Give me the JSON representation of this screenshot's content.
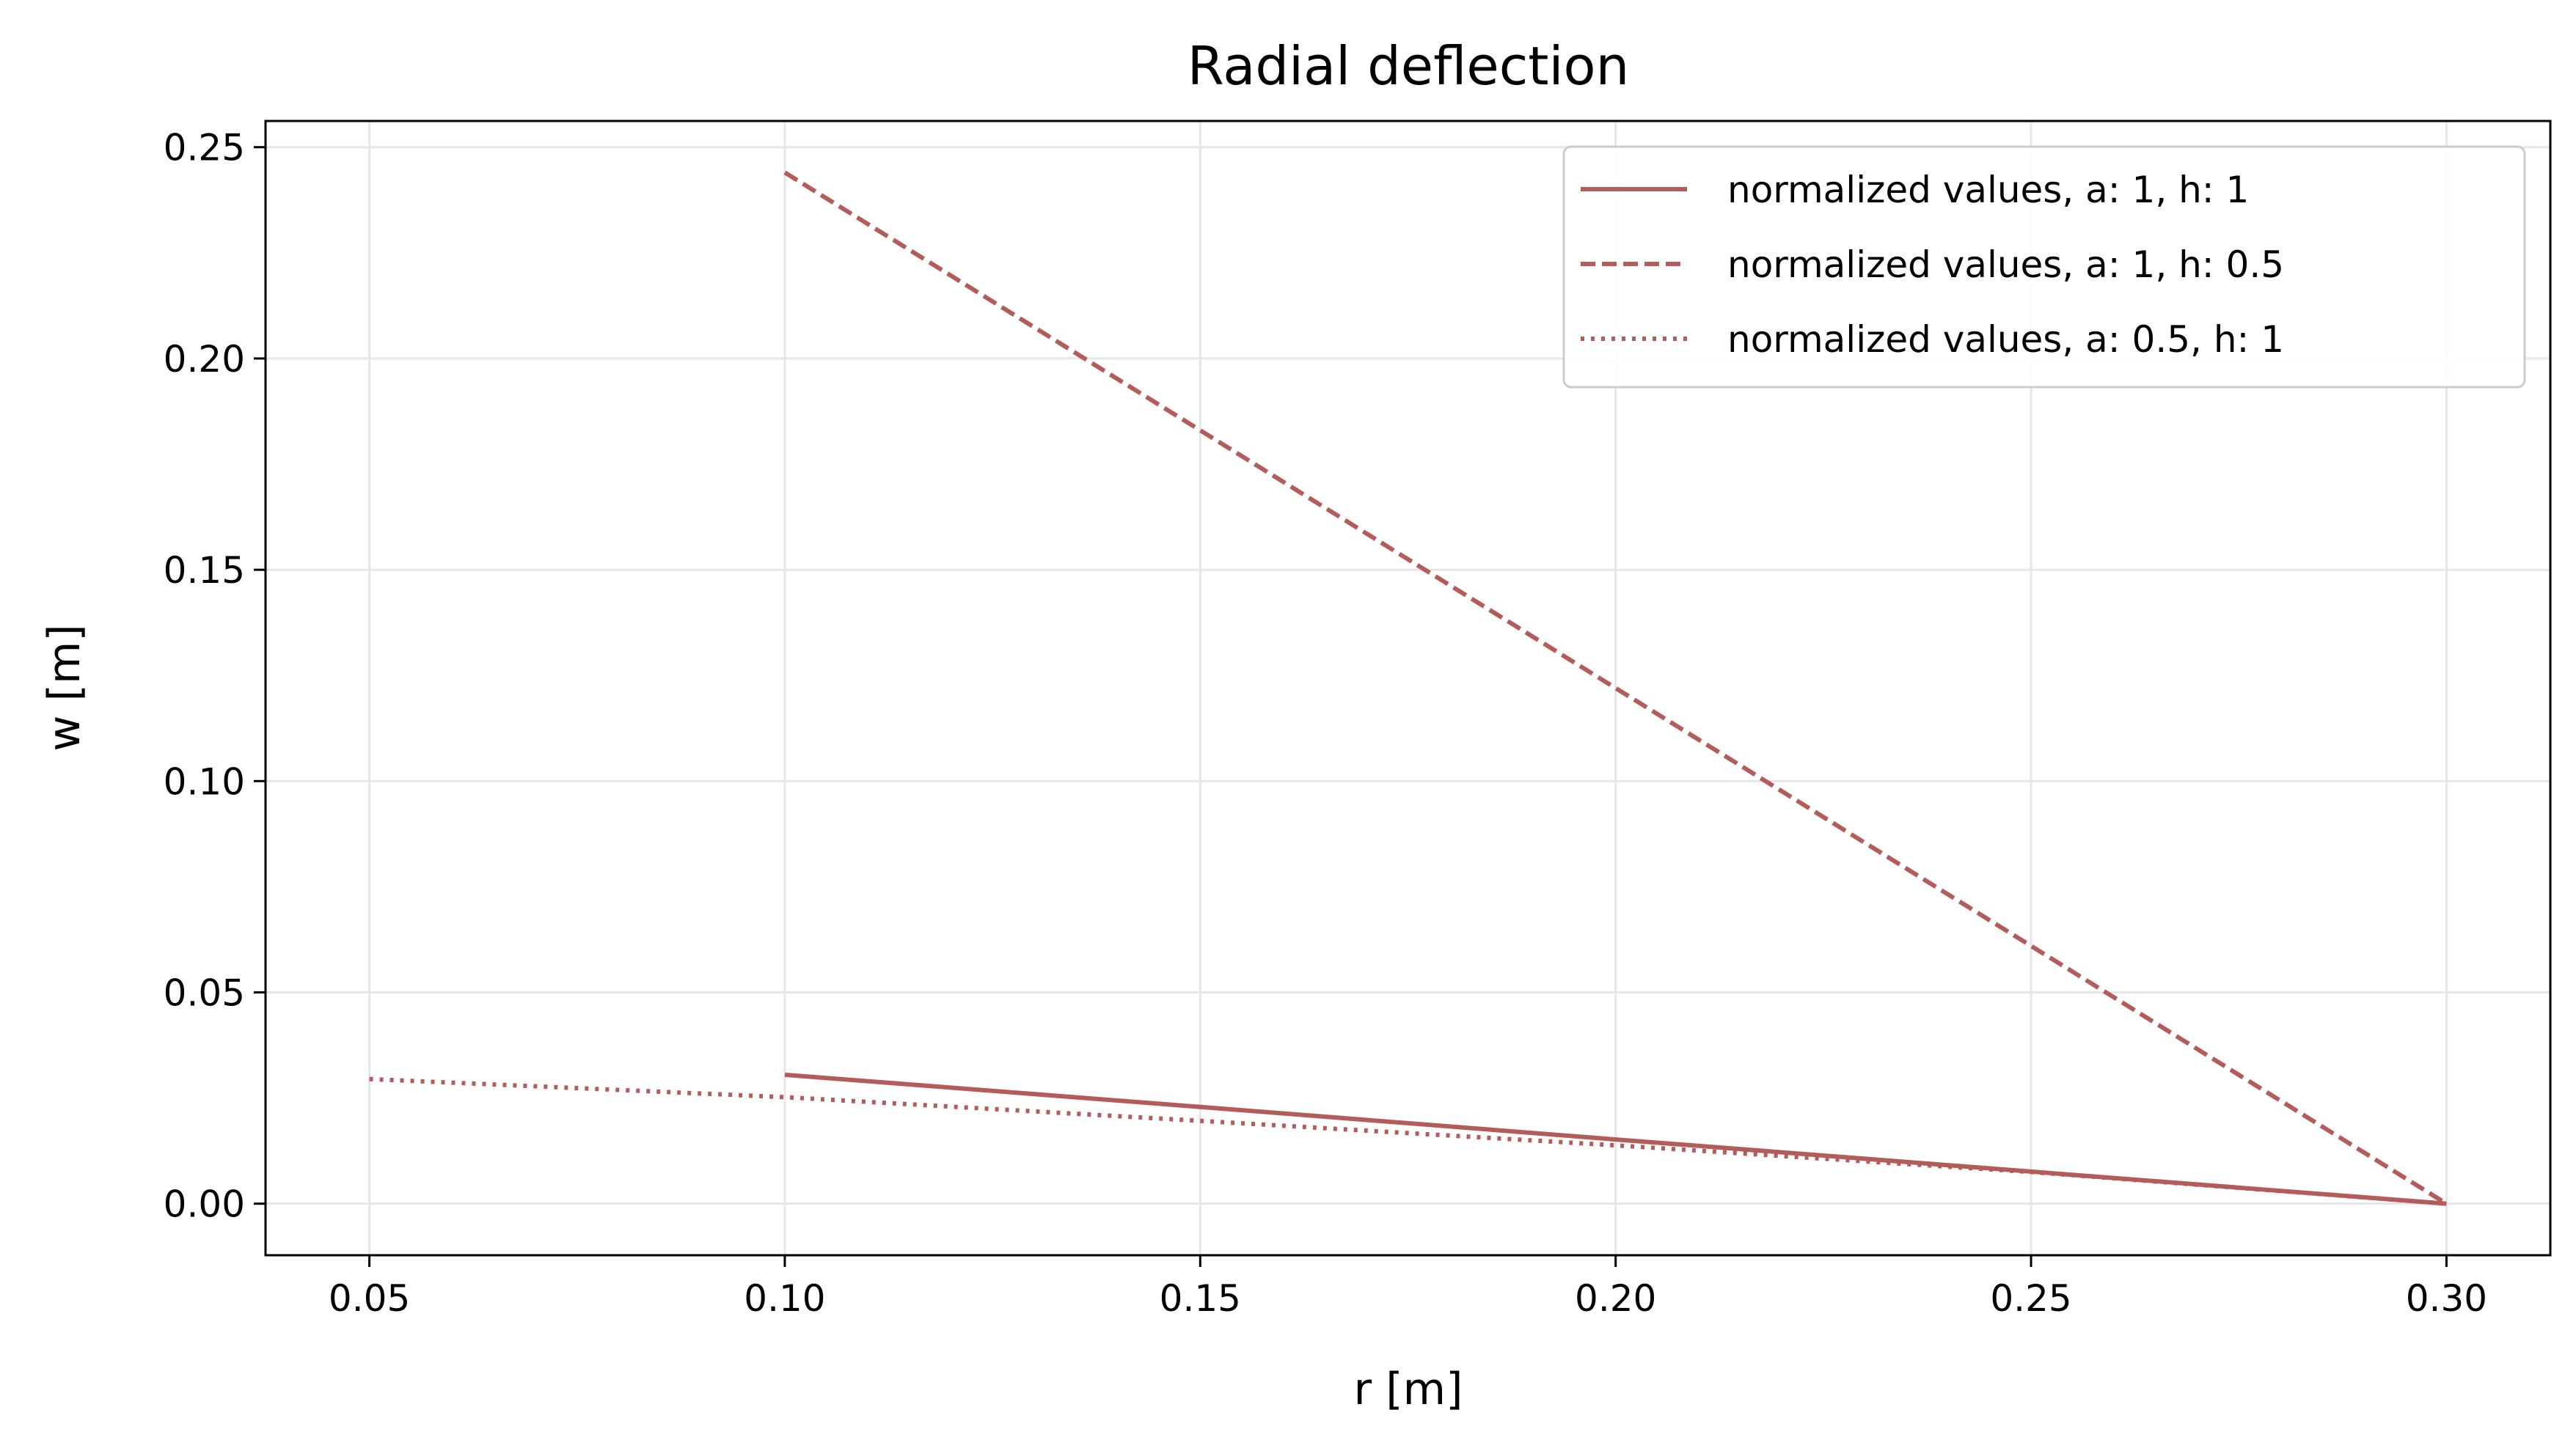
{
  "chart_data": {
    "type": "line",
    "title": "Radial deflection",
    "xlabel": "r [m]",
    "ylabel": "w [m]",
    "xlim": [
      0.0375,
      0.3125
    ],
    "ylim": [
      -0.0122,
      0.2562
    ],
    "xticks": [
      0.05,
      0.1,
      0.15,
      0.2,
      0.25,
      0.3
    ],
    "xtick_labels": [
      "0.05",
      "0.10",
      "0.15",
      "0.20",
      "0.25",
      "0.30"
    ],
    "yticks": [
      0.0,
      0.05,
      0.1,
      0.15,
      0.2,
      0.25
    ],
    "ytick_labels": [
      "0.00",
      "0.05",
      "0.10",
      "0.15",
      "0.20",
      "0.25"
    ],
    "grid": true,
    "legend_position": "top-right",
    "color": "#b35c5a",
    "series": [
      {
        "name": "normalized values, a: 1, h: 1",
        "style": "solid",
        "x": [
          0.1,
          0.15,
          0.2,
          0.25,
          0.3
        ],
        "y": [
          0.0305,
          0.0229,
          0.0152,
          0.0076,
          0.0
        ]
      },
      {
        "name": "normalized values, a: 1, h: 0.5",
        "style": "dashed",
        "x": [
          0.1,
          0.15,
          0.2,
          0.25,
          0.3
        ],
        "y": [
          0.244,
          0.183,
          0.122,
          0.061,
          0.0
        ]
      },
      {
        "name": "normalized values, a: 0.5, h: 1",
        "style": "dotted",
        "x": [
          0.05,
          0.1,
          0.15,
          0.2,
          0.25,
          0.3
        ],
        "y": [
          0.0295,
          0.0252,
          0.0196,
          0.0138,
          0.0075,
          0.0
        ]
      }
    ]
  }
}
